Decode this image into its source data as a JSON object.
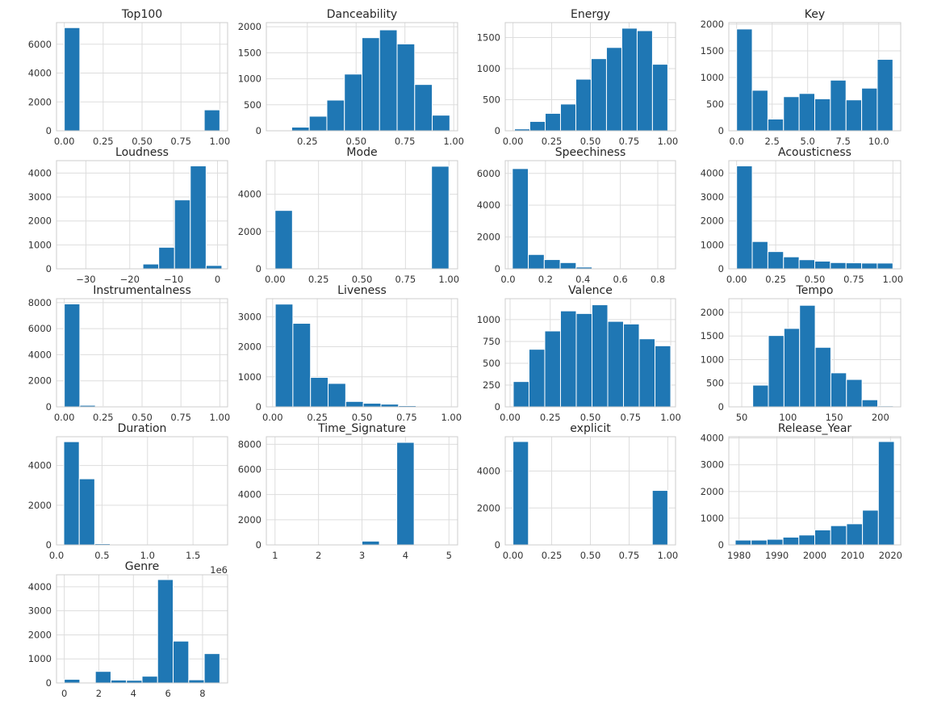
{
  "style": {
    "bar_color": "#1f77b4",
    "grid_color": "#dddddd",
    "frame_color": "#cccccc",
    "background": "#ffffff"
  },
  "chart_data": [
    {
      "type": "bar",
      "title": "Top100",
      "xlim": [
        -0.05,
        1.05
      ],
      "xticks": [
        0,
        0.25,
        0.5,
        0.75,
        1
      ],
      "xtick_labels": [
        "0.00",
        "0.25",
        "0.50",
        "0.75",
        "1.00"
      ],
      "ylim": [
        0,
        7500
      ],
      "yticks": [
        0,
        2000,
        4000,
        6000
      ],
      "ytick_labels": [
        "0",
        "2000",
        "4000",
        "6000"
      ],
      "bin_edges": [
        0,
        0.1,
        0.2,
        0.3,
        0.4,
        0.5,
        0.6,
        0.7,
        0.8,
        0.9,
        1
      ],
      "values": [
        7150,
        0,
        0,
        0,
        0,
        0,
        0,
        0,
        0,
        1450
      ]
    },
    {
      "type": "bar",
      "title": "Danceability",
      "xlim": [
        0.04,
        1.02
      ],
      "xticks": [
        0.25,
        0.5,
        0.75,
        1
      ],
      "xtick_labels": [
        "0.25",
        "0.50",
        "0.75",
        "1.00"
      ],
      "ylim": [
        0,
        2080
      ],
      "yticks": [
        0,
        500,
        1000,
        1500,
        2000
      ],
      "ytick_labels": [
        "0",
        "500",
        "1000",
        "1500",
        "2000"
      ],
      "bin_edges": [
        0.08,
        0.17,
        0.26,
        0.35,
        0.44,
        0.53,
        0.62,
        0.71,
        0.8,
        0.89,
        0.98
      ],
      "values": [
        0,
        70,
        280,
        590,
        1090,
        1790,
        1940,
        1670,
        890,
        300
      ]
    },
    {
      "type": "bar",
      "title": "Energy",
      "xlim": [
        -0.05,
        1.05
      ],
      "xticks": [
        0,
        0.25,
        0.5,
        0.75,
        1
      ],
      "xtick_labels": [
        "0.00",
        "0.25",
        "0.50",
        "0.75",
        "1.00"
      ],
      "ylim": [
        0,
        1740
      ],
      "yticks": [
        0,
        500,
        1000,
        1500
      ],
      "ytick_labels": [
        "0",
        "500",
        "1000",
        "1500"
      ],
      "bin_edges": [
        0.01,
        0.109,
        0.208,
        0.307,
        0.406,
        0.505,
        0.604,
        0.703,
        0.802,
        0.901,
        1.0
      ],
      "values": [
        30,
        150,
        280,
        430,
        830,
        1160,
        1340,
        1650,
        1610,
        1070
      ]
    },
    {
      "type": "bar",
      "title": "Key",
      "xlim": [
        -0.55,
        11.55
      ],
      "xticks": [
        0,
        2.5,
        5,
        7.5,
        10
      ],
      "xtick_labels": [
        "0.0",
        "2.5",
        "5.0",
        "7.5",
        "10.0"
      ],
      "ylim": [
        0,
        2030
      ],
      "yticks": [
        0,
        500,
        1000,
        1500,
        2000
      ],
      "ytick_labels": [
        "0",
        "500",
        "1000",
        "1500",
        "2000"
      ],
      "bin_edges": [
        0,
        1.1,
        2.2,
        3.3,
        4.4,
        5.5,
        6.6,
        7.7,
        8.8,
        9.9,
        11
      ],
      "values": [
        1910,
        760,
        220,
        640,
        700,
        600,
        950,
        580,
        800,
        1340
      ]
    },
    {
      "type": "bar",
      "title": "Loudness",
      "xlim": [
        -36.7,
        2.3
      ],
      "xticks": [
        -30,
        -20,
        -10,
        0
      ],
      "xtick_labels": [
        "−30",
        "−20",
        "−10",
        "0"
      ],
      "ylim": [
        0,
        4520
      ],
      "yticks": [
        0,
        1000,
        2000,
        3000,
        4000
      ],
      "ytick_labels": [
        "0",
        "1000",
        "2000",
        "3000",
        "4000"
      ],
      "bin_edges": [
        -35,
        -31.4,
        -27.8,
        -24.2,
        -20.6,
        -17,
        -13.4,
        -9.8,
        -6.2,
        -2.6,
        1
      ],
      "values": [
        0,
        0,
        0,
        0,
        0,
        200,
        900,
        2880,
        4300,
        140
      ]
    },
    {
      "type": "bar",
      "title": "Mode",
      "xlim": [
        -0.05,
        1.05
      ],
      "xticks": [
        0,
        0.25,
        0.5,
        0.75,
        1
      ],
      "xtick_labels": [
        "0.00",
        "0.25",
        "0.50",
        "0.75",
        "1.00"
      ],
      "ylim": [
        0,
        5800
      ],
      "yticks": [
        0,
        2000,
        4000
      ],
      "ytick_labels": [
        "0",
        "2000",
        "4000"
      ],
      "bin_edges": [
        0,
        0.1,
        0.2,
        0.3,
        0.4,
        0.5,
        0.6,
        0.7,
        0.8,
        0.9,
        1
      ],
      "values": [
        3130,
        0,
        0,
        0,
        0,
        0,
        0,
        0,
        0,
        5500
      ]
    },
    {
      "type": "bar",
      "title": "Speechiness",
      "xlim": [
        -0.015,
        0.895
      ],
      "xticks": [
        0,
        0.2,
        0.4,
        0.6,
        0.8
      ],
      "xtick_labels": [
        "0.0",
        "0.2",
        "0.4",
        "0.6",
        "0.8"
      ],
      "ylim": [
        0,
        6800
      ],
      "yticks": [
        0,
        2000,
        4000,
        6000
      ],
      "ytick_labels": [
        "0",
        "2000",
        "4000",
        "6000"
      ],
      "bin_edges": [
        0.023,
        0.1082,
        0.1934,
        0.2786,
        0.3638,
        0.449,
        0.5342,
        0.6194,
        0.7046,
        0.7898,
        0.875
      ],
      "values": [
        6300,
        900,
        580,
        390,
        110,
        15,
        10,
        5,
        5,
        5
      ]
    },
    {
      "type": "bar",
      "title": "Acousticness",
      "xlim": [
        -0.05,
        1.05
      ],
      "xticks": [
        0,
        0.25,
        0.5,
        0.75,
        1
      ],
      "xtick_labels": [
        "0.00",
        "0.25",
        "0.50",
        "0.75",
        "1.00"
      ],
      "ylim": [
        0,
        4520
      ],
      "yticks": [
        0,
        1000,
        2000,
        3000,
        4000
      ],
      "ytick_labels": [
        "0",
        "1000",
        "2000",
        "3000",
        "4000"
      ],
      "bin_edges": [
        0,
        0.1,
        0.2,
        0.3,
        0.4,
        0.5,
        0.6,
        0.7,
        0.8,
        0.9,
        1
      ],
      "values": [
        4300,
        1140,
        720,
        500,
        380,
        320,
        260,
        250,
        240,
        240
      ]
    },
    {
      "type": "bar",
      "title": "Instrumentalness",
      "xlim": [
        -0.05,
        1.05
      ],
      "xticks": [
        0,
        0.25,
        0.5,
        0.75,
        1
      ],
      "xtick_labels": [
        "0.00",
        "0.25",
        "0.50",
        "0.75",
        "1.00"
      ],
      "ylim": [
        0,
        8300
      ],
      "yticks": [
        0,
        2000,
        4000,
        6000,
        8000
      ],
      "ytick_labels": [
        "0",
        "2000",
        "4000",
        "6000",
        "8000"
      ],
      "bin_edges": [
        0,
        0.1,
        0.2,
        0.3,
        0.4,
        0.5,
        0.6,
        0.7,
        0.8,
        0.9,
        1
      ],
      "values": [
        7900,
        120,
        30,
        20,
        15,
        10,
        10,
        10,
        10,
        10
      ]
    },
    {
      "type": "bar",
      "title": "Liveness",
      "xlim": [
        -0.035,
        1.035
      ],
      "xticks": [
        0,
        0.25,
        0.5,
        0.75,
        1
      ],
      "xtick_labels": [
        "0.00",
        "0.25",
        "0.50",
        "0.75",
        "1.00"
      ],
      "ylim": [
        0,
        3600
      ],
      "yticks": [
        0,
        1000,
        2000,
        3000
      ],
      "ytick_labels": [
        "0",
        "1000",
        "2000",
        "3000"
      ],
      "bin_edges": [
        0.015,
        0.1135,
        0.212,
        0.3105,
        0.409,
        0.5075,
        0.606,
        0.7045,
        0.803,
        0.9015,
        1.0
      ],
      "values": [
        3420,
        2780,
        980,
        780,
        180,
        120,
        90,
        40,
        10,
        5
      ]
    },
    {
      "type": "bar",
      "title": "Valence",
      "xlim": [
        -0.03,
        1.03
      ],
      "xticks": [
        0,
        0.25,
        0.5,
        0.75,
        1
      ],
      "xtick_labels": [
        "0.00",
        "0.25",
        "0.50",
        "0.75",
        "1.00"
      ],
      "ylim": [
        0,
        1240
      ],
      "yticks": [
        0,
        250,
        500,
        750,
        1000
      ],
      "ytick_labels": [
        "0",
        "250",
        "500",
        "750",
        "1000"
      ],
      "bin_edges": [
        0.02,
        0.118,
        0.216,
        0.314,
        0.412,
        0.51,
        0.608,
        0.706,
        0.804,
        0.902,
        1.0
      ],
      "values": [
        290,
        660,
        870,
        1100,
        1070,
        1170,
        980,
        950,
        780,
        700
      ]
    },
    {
      "type": "bar",
      "title": "Tempo",
      "xlim": [
        36,
        222
      ],
      "xticks": [
        50,
        100,
        150,
        200
      ],
      "xtick_labels": [
        "50",
        "100",
        "150",
        "200"
      ],
      "ylim": [
        0,
        2290
      ],
      "yticks": [
        0,
        500,
        1000,
        1500,
        2000
      ],
      "ytick_labels": [
        "0",
        "500",
        "1000",
        "1500",
        "2000"
      ],
      "bin_edges": [
        45,
        61.9,
        78.8,
        95.7,
        112.6,
        129.5,
        146.4,
        163.3,
        180.2,
        197.1,
        214
      ],
      "values": [
        0,
        460,
        1510,
        1660,
        2150,
        1260,
        720,
        580,
        150,
        20
      ]
    },
    {
      "type": "bar",
      "title": "Duration",
      "xlim": [
        0,
        1880000
      ],
      "xticks": [
        0,
        500000,
        1000000,
        1500000
      ],
      "xtick_labels": [
        "0.0",
        "0.5",
        "1.0",
        "1.5"
      ],
      "xoffset_label": "1e6",
      "ylim": [
        0,
        5450
      ],
      "yticks": [
        0,
        2000,
        4000
      ],
      "ytick_labels": [
        "0",
        "2000",
        "4000"
      ],
      "bin_edges": [
        80000,
        250000,
        420000,
        590000,
        760000,
        930000,
        1100000,
        1270000,
        1440000,
        1610000,
        1780000
      ],
      "values": [
        5200,
        3330,
        60,
        15,
        5,
        5,
        0,
        0,
        0,
        5
      ]
    },
    {
      "type": "bar",
      "title": "Time_Signature",
      "xlim": [
        0.8,
        5.2
      ],
      "xticks": [
        1,
        2,
        3,
        4,
        5
      ],
      "xtick_labels": [
        "1",
        "2",
        "3",
        "4",
        "5"
      ],
      "ylim": [
        0,
        8600
      ],
      "yticks": [
        0,
        2000,
        4000,
        6000,
        8000
      ],
      "ytick_labels": [
        "0",
        "2000",
        "4000",
        "6000",
        "8000"
      ],
      "bin_edges": [
        1,
        1.4,
        1.8,
        2.2,
        2.6,
        3,
        3.4,
        3.8,
        4.2,
        4.6,
        5
      ],
      "values": [
        5,
        0,
        0,
        0,
        0,
        300,
        0,
        8150,
        0,
        20
      ]
    },
    {
      "type": "bar",
      "title": "explicit",
      "xlim": [
        -0.05,
        1.05
      ],
      "xticks": [
        0,
        0.25,
        0.5,
        0.75,
        1
      ],
      "xtick_labels": [
        "0.00",
        "0.25",
        "0.50",
        "0.75",
        "1.00"
      ],
      "ylim": [
        0,
        5860
      ],
      "yticks": [
        0,
        2000,
        4000
      ],
      "ytick_labels": [
        "0",
        "2000",
        "4000"
      ],
      "bin_edges": [
        0,
        0.1,
        0.2,
        0.3,
        0.4,
        0.5,
        0.6,
        0.7,
        0.8,
        0.9,
        1
      ],
      "values": [
        5600,
        0,
        0,
        0,
        0,
        0,
        0,
        0,
        0,
        2950
      ]
    },
    {
      "type": "bar",
      "title": "Release_Year",
      "xlim": [
        1977.3,
        2022.7
      ],
      "xticks": [
        1980,
        1990,
        2000,
        2010,
        2020
      ],
      "xtick_labels": [
        "1980",
        "1990",
        "2000",
        "2010",
        "2020"
      ],
      "ylim": [
        0,
        4050
      ],
      "yticks": [
        0,
        1000,
        2000,
        3000,
        4000
      ],
      "ytick_labels": [
        "0",
        "1000",
        "2000",
        "3000",
        "4000"
      ],
      "bin_edges": [
        1979,
        1983.2,
        1987.4,
        1991.6,
        1995.8,
        2000,
        2004.2,
        2008.4,
        2012.6,
        2016.8,
        2021
      ],
      "values": [
        180,
        180,
        210,
        290,
        370,
        560,
        720,
        790,
        1300,
        3870
      ]
    },
    {
      "type": "bar",
      "title": "Genre",
      "xlim": [
        -0.45,
        9.45
      ],
      "xticks": [
        0,
        2,
        4,
        6,
        8
      ],
      "xtick_labels": [
        "0",
        "2",
        "4",
        "6",
        "8"
      ],
      "ylim": [
        0,
        4500
      ],
      "yticks": [
        0,
        1000,
        2000,
        3000,
        4000
      ],
      "ytick_labels": [
        "0",
        "1000",
        "2000",
        "3000",
        "4000"
      ],
      "bin_edges": [
        0,
        0.9,
        1.8,
        2.7,
        3.6,
        4.5,
        5.4,
        6.3,
        7.2,
        8.1,
        9
      ],
      "values": [
        150,
        0,
        480,
        120,
        110,
        280,
        4300,
        1740,
        130,
        1220
      ]
    }
  ]
}
